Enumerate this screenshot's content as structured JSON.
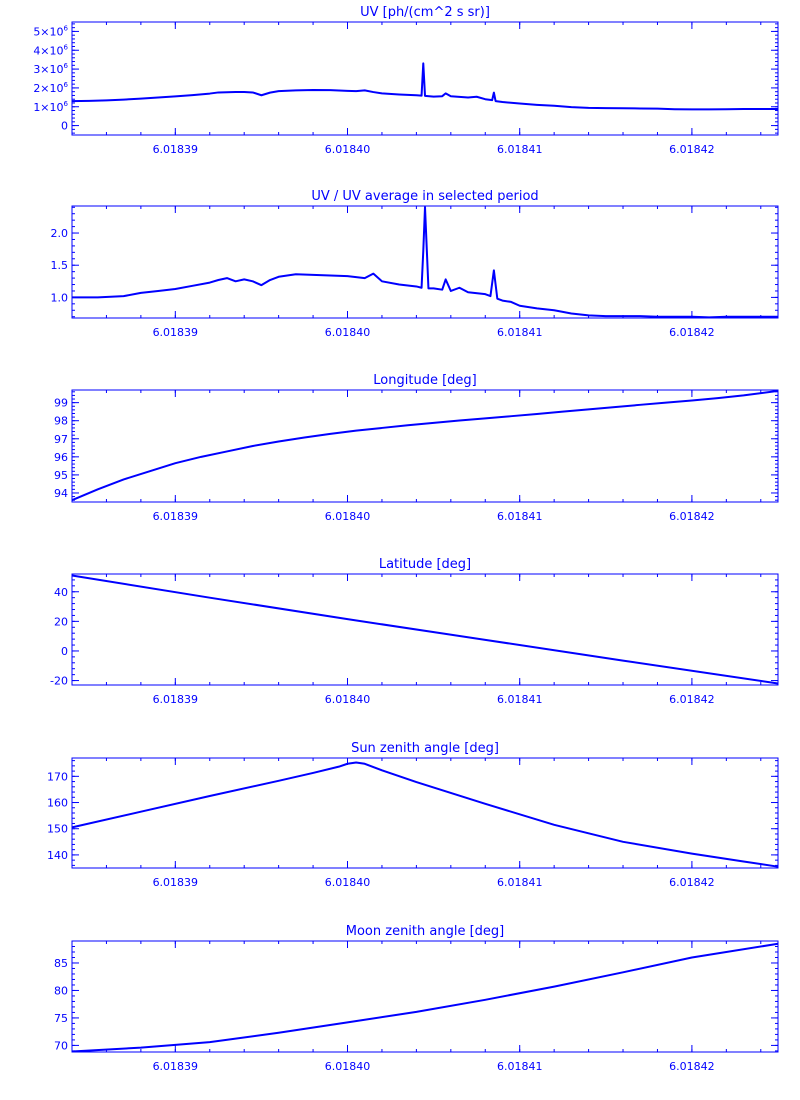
{
  "chart_data": [
    {
      "type": "line",
      "title": "UV [ph/(cm^2 s sr)]",
      "xlabel": "",
      "ylabel": "",
      "xlim": [
        6.018384,
        6.018425
      ],
      "ylim": [
        -500000,
        5500000
      ],
      "xticks": [
        6.01839,
        6.0184,
        6.01841,
        6.01842
      ],
      "xtick_labels": [
        "6.01839",
        "6.01840",
        "6.01841",
        "6.01842"
      ],
      "yticks": [
        0,
        1000000,
        2000000,
        3000000,
        4000000,
        5000000
      ],
      "ytick_labels": [
        {
          "mant": "0",
          "exp": ""
        },
        {
          "mant": "1×10",
          "exp": "6"
        },
        {
          "mant": "2×10",
          "exp": "6"
        },
        {
          "mant": "3×10",
          "exp": "6"
        },
        {
          "mant": "4×10",
          "exp": "6"
        },
        {
          "mant": "5×10",
          "exp": "6"
        }
      ],
      "grid": false,
      "series": [
        {
          "color": "#0000ff",
          "points": [
            [
              6.018384,
              1300000
            ],
            [
              6.018385,
              1310000
            ],
            [
              6.018386,
              1340000
            ],
            [
              6.018387,
              1380000
            ],
            [
              6.018388,
              1430000
            ],
            [
              6.018389,
              1490000
            ],
            [
              6.01839,
              1550000
            ],
            [
              6.018391,
              1620000
            ],
            [
              6.018392,
              1700000
            ],
            [
              6.0183925,
              1760000
            ],
            [
              6.018393,
              1770000
            ],
            [
              6.0183935,
              1780000
            ],
            [
              6.018394,
              1780000
            ],
            [
              6.0183945,
              1760000
            ],
            [
              6.018395,
              1610000
            ],
            [
              6.0183955,
              1750000
            ],
            [
              6.018396,
              1830000
            ],
            [
              6.018397,
              1870000
            ],
            [
              6.018398,
              1890000
            ],
            [
              6.018399,
              1880000
            ],
            [
              6.0184,
              1840000
            ],
            [
              6.0184005,
              1830000
            ],
            [
              6.018401,
              1870000
            ],
            [
              6.0184015,
              1780000
            ],
            [
              6.018402,
              1710000
            ],
            [
              6.018403,
              1650000
            ],
            [
              6.018404,
              1610000
            ],
            [
              6.0184043,
              1590000
            ],
            [
              6.0184044,
              3300000
            ],
            [
              6.0184045,
              1580000
            ],
            [
              6.018405,
              1540000
            ],
            [
              6.0184055,
              1560000
            ],
            [
              6.0184057,
              1710000
            ],
            [
              6.018406,
              1560000
            ],
            [
              6.018407,
              1490000
            ],
            [
              6.0184075,
              1530000
            ],
            [
              6.018408,
              1400000
            ],
            [
              6.0184084,
              1350000
            ],
            [
              6.0184085,
              1750000
            ],
            [
              6.0184086,
              1300000
            ],
            [
              6.018409,
              1250000
            ],
            [
              6.01841,
              1170000
            ],
            [
              6.018411,
              1100000
            ],
            [
              6.018412,
              1050000
            ],
            [
              6.018413,
              980000
            ],
            [
              6.018414,
              940000
            ],
            [
              6.018415,
              930000
            ],
            [
              6.018416,
              920000
            ],
            [
              6.018417,
              910000
            ],
            [
              6.018418,
              900000
            ],
            [
              6.018419,
              870000
            ],
            [
              6.01842,
              860000
            ],
            [
              6.018421,
              860000
            ],
            [
              6.018422,
              870000
            ],
            [
              6.018423,
              880000
            ],
            [
              6.018424,
              880000
            ],
            [
              6.018425,
              880000
            ]
          ]
        }
      ]
    },
    {
      "type": "line",
      "title": "UV / UV average in selected period",
      "xlabel": "",
      "ylabel": "",
      "xlim": [
        6.018384,
        6.018425
      ],
      "ylim": [
        0.68,
        2.42
      ],
      "xticks": [
        6.01839,
        6.0184,
        6.01841,
        6.01842
      ],
      "xtick_labels": [
        "6.01839",
        "6.01840",
        "6.01841",
        "6.01842"
      ],
      "yticks": [
        1.0,
        1.5,
        2.0
      ],
      "ytick_labels": [
        "1.0",
        "1.5",
        "2.0"
      ],
      "grid": false,
      "series": [
        {
          "color": "#0000ff",
          "points": [
            [
              6.018384,
              1.0
            ],
            [
              6.0183855,
              1.0
            ],
            [
              6.018387,
              1.02
            ],
            [
              6.018388,
              1.07
            ],
            [
              6.018389,
              1.1
            ],
            [
              6.01839,
              1.13
            ],
            [
              6.018391,
              1.18
            ],
            [
              6.018392,
              1.23
            ],
            [
              6.0183925,
              1.27
            ],
            [
              6.018393,
              1.3
            ],
            [
              6.0183935,
              1.25
            ],
            [
              6.018394,
              1.28
            ],
            [
              6.0183945,
              1.25
            ],
            [
              6.018395,
              1.19
            ],
            [
              6.0183955,
              1.27
            ],
            [
              6.018396,
              1.32
            ],
            [
              6.018397,
              1.36
            ],
            [
              6.018398,
              1.35
            ],
            [
              6.018399,
              1.34
            ],
            [
              6.0184,
              1.33
            ],
            [
              6.018401,
              1.3
            ],
            [
              6.0184015,
              1.37
            ],
            [
              6.018402,
              1.25
            ],
            [
              6.018403,
              1.2
            ],
            [
              6.018404,
              1.17
            ],
            [
              6.0184043,
              1.15
            ],
            [
              6.0184044,
              1.72
            ],
            [
              6.0184045,
              2.4
            ],
            [
              6.0184047,
              1.14
            ],
            [
              6.018405,
              1.14
            ],
            [
              6.0184055,
              1.12
            ],
            [
              6.0184057,
              1.28
            ],
            [
              6.018406,
              1.1
            ],
            [
              6.0184065,
              1.15
            ],
            [
              6.018407,
              1.08
            ],
            [
              6.018408,
              1.05
            ],
            [
              6.0184083,
              1.02
            ],
            [
              6.0184085,
              1.42
            ],
            [
              6.0184087,
              0.98
            ],
            [
              6.018409,
              0.95
            ],
            [
              6.0184095,
              0.93
            ],
            [
              6.01841,
              0.87
            ],
            [
              6.018411,
              0.83
            ],
            [
              6.018412,
              0.8
            ],
            [
              6.018413,
              0.75
            ],
            [
              6.018414,
              0.72
            ],
            [
              6.018415,
              0.71
            ],
            [
              6.018416,
              0.71
            ],
            [
              6.018417,
              0.71
            ],
            [
              6.018418,
              0.7
            ],
            [
              6.018419,
              0.7
            ],
            [
              6.01842,
              0.7
            ],
            [
              6.018421,
              0.69
            ],
            [
              6.018422,
              0.7
            ],
            [
              6.018423,
              0.7
            ],
            [
              6.018424,
              0.7
            ],
            [
              6.018425,
              0.7
            ]
          ]
        }
      ]
    },
    {
      "type": "line",
      "title": "Longitude [deg]",
      "xlabel": "",
      "ylabel": "",
      "xlim": [
        6.018384,
        6.018425
      ],
      "ylim": [
        93.5,
        99.7
      ],
      "xticks": [
        6.01839,
        6.0184,
        6.01841,
        6.01842
      ],
      "xtick_labels": [
        "6.01839",
        "6.01840",
        "6.01841",
        "6.01842"
      ],
      "yticks": [
        94,
        95,
        96,
        97,
        98,
        99
      ],
      "ytick_labels": [
        "94",
        "95",
        "96",
        "97",
        "98",
        "99"
      ],
      "grid": false,
      "series": [
        {
          "color": "#0000ff",
          "points": [
            [
              6.018384,
              93.6
            ],
            [
              6.0183855,
              94.2
            ],
            [
              6.018387,
              94.75
            ],
            [
              6.0183885,
              95.2
            ],
            [
              6.01839,
              95.65
            ],
            [
              6.0183915,
              96.0
            ],
            [
              6.018393,
              96.3
            ],
            [
              6.0183945,
              96.6
            ],
            [
              6.018396,
              96.85
            ],
            [
              6.0183975,
              97.07
            ],
            [
              6.018399,
              97.27
            ],
            [
              6.0184005,
              97.45
            ],
            [
              6.018402,
              97.6
            ],
            [
              6.0184035,
              97.75
            ],
            [
              6.018405,
              97.88
            ],
            [
              6.0184065,
              98.01
            ],
            [
              6.018408,
              98.13
            ],
            [
              6.0184095,
              98.25
            ],
            [
              6.018411,
              98.37
            ],
            [
              6.0184125,
              98.5
            ],
            [
              6.018414,
              98.63
            ],
            [
              6.0184155,
              98.75
            ],
            [
              6.018417,
              98.88
            ],
            [
              6.0184185,
              99.0
            ],
            [
              6.01842,
              99.12
            ],
            [
              6.0184215,
              99.25
            ],
            [
              6.018423,
              99.4
            ],
            [
              6.018425,
              99.65
            ]
          ]
        }
      ]
    },
    {
      "type": "line",
      "title": "Latitude [deg]",
      "xlabel": "",
      "ylabel": "",
      "xlim": [
        6.018384,
        6.018425
      ],
      "ylim": [
        -23,
        52
      ],
      "xticks": [
        6.01839,
        6.0184,
        6.01841,
        6.01842
      ],
      "xtick_labels": [
        "6.01839",
        "6.01840",
        "6.01841",
        "6.01842"
      ],
      "yticks": [
        -20,
        0,
        20,
        40
      ],
      "ytick_labels": [
        "-20",
        "0",
        "20",
        "40"
      ],
      "grid": false,
      "series": [
        {
          "color": "#0000ff",
          "points": [
            [
              6.018384,
              51
            ],
            [
              6.018392,
              36
            ],
            [
              6.0184,
              21.5
            ],
            [
              6.018408,
              7.5
            ],
            [
              6.018416,
              -6.5
            ],
            [
              6.018425,
              -22
            ]
          ]
        }
      ]
    },
    {
      "type": "line",
      "title": "Sun zenith angle [deg]",
      "xlabel": "",
      "ylabel": "",
      "xlim": [
        6.018384,
        6.018425
      ],
      "ylim": [
        135,
        177
      ],
      "xticks": [
        6.01839,
        6.0184,
        6.01841,
        6.01842
      ],
      "xtick_labels": [
        "6.01839",
        "6.01840",
        "6.01841",
        "6.01842"
      ],
      "yticks": [
        140,
        150,
        160,
        170
      ],
      "ytick_labels": [
        "140",
        "150",
        "160",
        "170"
      ],
      "grid": false,
      "series": [
        {
          "color": "#0000ff",
          "points": [
            [
              6.018384,
              150.5
            ],
            [
              6.018388,
              156.5
            ],
            [
              6.018392,
              162.5
            ],
            [
              6.018396,
              168.3
            ],
            [
              6.018398,
              171.3
            ],
            [
              6.0183995,
              173.7
            ],
            [
              6.0184,
              174.8
            ],
            [
              6.0184005,
              175.3
            ],
            [
              6.018401,
              174.8
            ],
            [
              6.018402,
              172.3
            ],
            [
              6.018404,
              167.8
            ],
            [
              6.018408,
              159.5
            ],
            [
              6.018412,
              151.5
            ],
            [
              6.018416,
              145.0
            ],
            [
              6.01842,
              140.5
            ],
            [
              6.018423,
              137.5
            ],
            [
              6.018425,
              135.5
            ]
          ]
        }
      ]
    },
    {
      "type": "line",
      "title": "Moon zenith angle [deg]",
      "xlabel": "",
      "ylabel": "",
      "xlim": [
        6.018384,
        6.018425
      ],
      "ylim": [
        68.8,
        89
      ],
      "xticks": [
        6.01839,
        6.0184,
        6.01841,
        6.01842
      ],
      "xtick_labels": [
        "6.01839",
        "6.01840",
        "6.01841",
        "6.01842"
      ],
      "yticks": [
        70,
        75,
        80,
        85
      ],
      "ytick_labels": [
        "70",
        "75",
        "80",
        "85"
      ],
      "grid": false,
      "series": [
        {
          "color": "#0000ff",
          "points": [
            [
              6.018384,
              68.9
            ],
            [
              6.018388,
              69.6
            ],
            [
              6.018392,
              70.6
            ],
            [
              6.018396,
              72.3
            ],
            [
              6.0184,
              74.2
            ],
            [
              6.018404,
              76.1
            ],
            [
              6.018408,
              78.3
            ],
            [
              6.018412,
              80.7
            ],
            [
              6.018416,
              83.3
            ],
            [
              6.01842,
              86.0
            ],
            [
              6.018425,
              88.5
            ]
          ]
        }
      ]
    }
  ]
}
